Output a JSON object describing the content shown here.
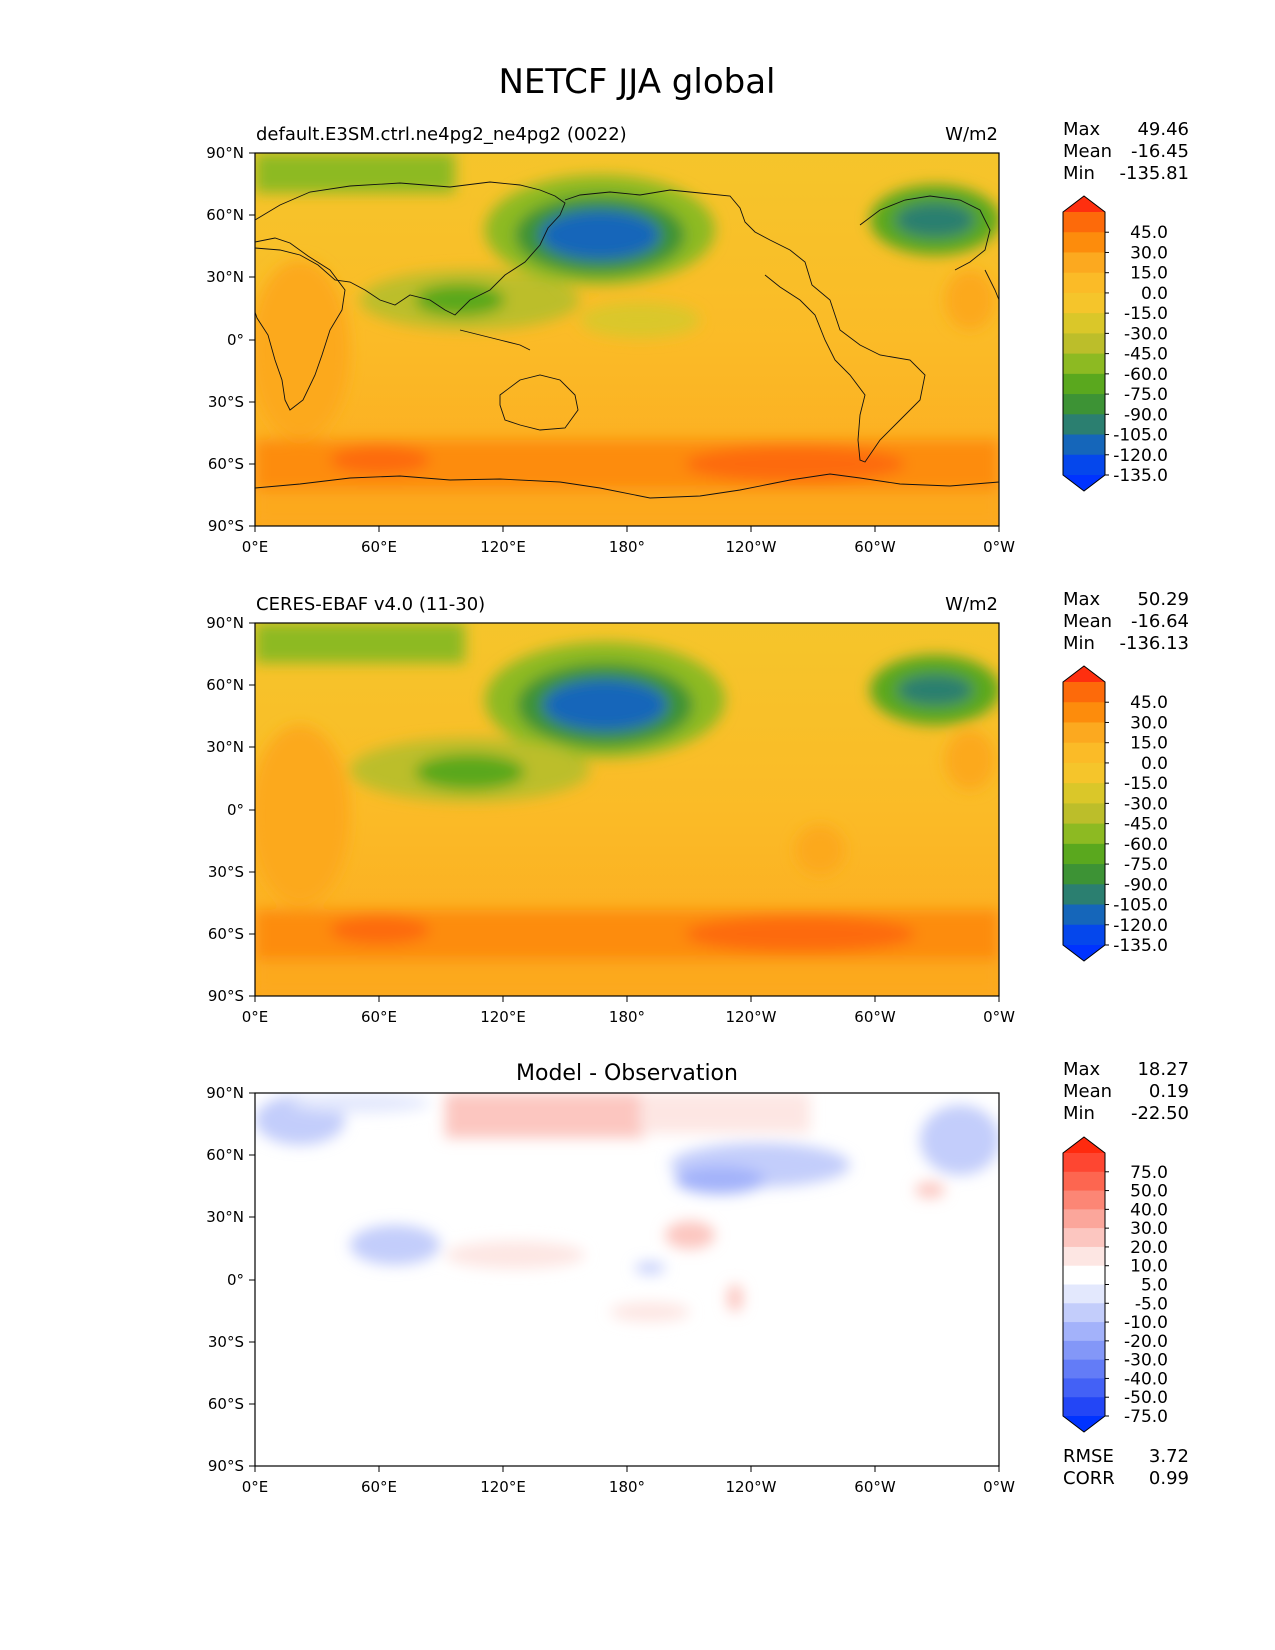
{
  "title": "NETCF JJA global",
  "x_ticks": [
    "0°E",
    "60°E",
    "120°E",
    "180°",
    "120°W",
    "60°W",
    "0°W"
  ],
  "y_ticks": [
    "90°N",
    "60°N",
    "30°N",
    "0°",
    "30°S",
    "60°S",
    "90°S"
  ],
  "panels": [
    {
      "left_title": "default.E3SM.ctrl.ne4pg2_ne4pg2 (0022)",
      "center_title": "",
      "units": "W/m2",
      "stats": {
        "max_label": "Max",
        "max": "49.46",
        "mean_label": "Mean",
        "mean": "-16.45",
        "min_label": "Min",
        "min": "-135.81"
      },
      "colorbar": {
        "labels": [
          "45.0",
          "30.0",
          "15.0",
          "0.0",
          "-15.0",
          "-30.0",
          "-45.0",
          "-60.0",
          "-75.0",
          "-90.0",
          "-105.0",
          "-120.0",
          "-135.0"
        ],
        "colors": [
          "#fe2f0f",
          "#fd6a0a",
          "#fd8c0c",
          "#fca91f",
          "#fbbb27",
          "#f5c52b",
          "#dac729",
          "#bcbe2a",
          "#8dba22",
          "#5aa81e",
          "#3d9335",
          "#2b7f70",
          "#1566ba",
          "#0547ec",
          "#0033ff"
        ]
      },
      "footer": null
    },
    {
      "left_title": "CERES-EBAF v4.0 (11-30)",
      "center_title": "",
      "units": "W/m2",
      "stats": {
        "max_label": "Max",
        "max": "50.29",
        "mean_label": "Mean",
        "mean": "-16.64",
        "min_label": "Min",
        "min": "-136.13"
      },
      "colorbar": {
        "labels": [
          "45.0",
          "30.0",
          "15.0",
          "0.0",
          "-15.0",
          "-30.0",
          "-45.0",
          "-60.0",
          "-75.0",
          "-90.0",
          "-105.0",
          "-120.0",
          "-135.0"
        ],
        "colors": [
          "#fe2f0f",
          "#fd6a0a",
          "#fd8c0c",
          "#fca91f",
          "#fbbb27",
          "#f5c52b",
          "#dac729",
          "#bcbe2a",
          "#8dba22",
          "#5aa81e",
          "#3d9335",
          "#2b7f70",
          "#1566ba",
          "#0547ec",
          "#0033ff"
        ]
      },
      "footer": null
    },
    {
      "left_title": "",
      "center_title": "Model - Observation",
      "units": "",
      "stats": {
        "max_label": "Max",
        "max": "18.27",
        "mean_label": "Mean",
        "mean": "0.19",
        "min_label": "Min",
        "min": "-22.50"
      },
      "colorbar": {
        "labels": [
          "75.0",
          "50.0",
          "40.0",
          "30.0",
          "20.0",
          "10.0",
          "5.0",
          "-5.0",
          "-10.0",
          "-20.0",
          "-30.0",
          "-40.0",
          "-50.0",
          "-75.0"
        ],
        "colors": [
          "#ff2a0e",
          "#fe4631",
          "#fd6650",
          "#fc8675",
          "#fba69b",
          "#fcc6c0",
          "#fde6e3",
          "#ffffff",
          "#e3e8fd",
          "#c3cdfb",
          "#a3b2fa",
          "#8397f8",
          "#637cf7",
          "#4361f6",
          "#2346f6",
          "#0033ff"
        ]
      },
      "footer": {
        "rmse_label": "RMSE",
        "rmse": "3.72",
        "corr_label": "CORR",
        "corr": "0.99"
      }
    }
  ]
}
